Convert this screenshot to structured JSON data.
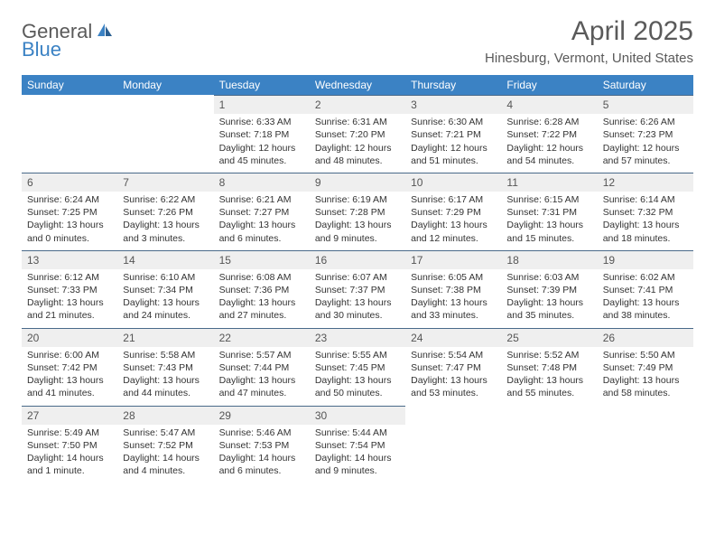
{
  "logo": {
    "part1": "General",
    "part2": "Blue"
  },
  "title": "April 2025",
  "location": "Hinesburg, Vermont, United States",
  "colors": {
    "header_blue": "#3b82c4",
    "daynum_bg": "#efefef",
    "rule": "#4a6a8a",
    "text_grey": "#5a5a5a",
    "body_text": "#333333"
  },
  "daysOfWeek": [
    "Sunday",
    "Monday",
    "Tuesday",
    "Wednesday",
    "Thursday",
    "Friday",
    "Saturday"
  ],
  "weeks": [
    [
      {
        "empty": true
      },
      {
        "empty": true
      },
      {
        "num": "1",
        "sunrise": "6:33 AM",
        "sunset": "7:18 PM",
        "daylight": "12 hours and 45 minutes."
      },
      {
        "num": "2",
        "sunrise": "6:31 AM",
        "sunset": "7:20 PM",
        "daylight": "12 hours and 48 minutes."
      },
      {
        "num": "3",
        "sunrise": "6:30 AM",
        "sunset": "7:21 PM",
        "daylight": "12 hours and 51 minutes."
      },
      {
        "num": "4",
        "sunrise": "6:28 AM",
        "sunset": "7:22 PM",
        "daylight": "12 hours and 54 minutes."
      },
      {
        "num": "5",
        "sunrise": "6:26 AM",
        "sunset": "7:23 PM",
        "daylight": "12 hours and 57 minutes."
      }
    ],
    [
      {
        "num": "6",
        "sunrise": "6:24 AM",
        "sunset": "7:25 PM",
        "daylight": "13 hours and 0 minutes."
      },
      {
        "num": "7",
        "sunrise": "6:22 AM",
        "sunset": "7:26 PM",
        "daylight": "13 hours and 3 minutes."
      },
      {
        "num": "8",
        "sunrise": "6:21 AM",
        "sunset": "7:27 PM",
        "daylight": "13 hours and 6 minutes."
      },
      {
        "num": "9",
        "sunrise": "6:19 AM",
        "sunset": "7:28 PM",
        "daylight": "13 hours and 9 minutes."
      },
      {
        "num": "10",
        "sunrise": "6:17 AM",
        "sunset": "7:29 PM",
        "daylight": "13 hours and 12 minutes."
      },
      {
        "num": "11",
        "sunrise": "6:15 AM",
        "sunset": "7:31 PM",
        "daylight": "13 hours and 15 minutes."
      },
      {
        "num": "12",
        "sunrise": "6:14 AM",
        "sunset": "7:32 PM",
        "daylight": "13 hours and 18 minutes."
      }
    ],
    [
      {
        "num": "13",
        "sunrise": "6:12 AM",
        "sunset": "7:33 PM",
        "daylight": "13 hours and 21 minutes."
      },
      {
        "num": "14",
        "sunrise": "6:10 AM",
        "sunset": "7:34 PM",
        "daylight": "13 hours and 24 minutes."
      },
      {
        "num": "15",
        "sunrise": "6:08 AM",
        "sunset": "7:36 PM",
        "daylight": "13 hours and 27 minutes."
      },
      {
        "num": "16",
        "sunrise": "6:07 AM",
        "sunset": "7:37 PM",
        "daylight": "13 hours and 30 minutes."
      },
      {
        "num": "17",
        "sunrise": "6:05 AM",
        "sunset": "7:38 PM",
        "daylight": "13 hours and 33 minutes."
      },
      {
        "num": "18",
        "sunrise": "6:03 AM",
        "sunset": "7:39 PM",
        "daylight": "13 hours and 35 minutes."
      },
      {
        "num": "19",
        "sunrise": "6:02 AM",
        "sunset": "7:41 PM",
        "daylight": "13 hours and 38 minutes."
      }
    ],
    [
      {
        "num": "20",
        "sunrise": "6:00 AM",
        "sunset": "7:42 PM",
        "daylight": "13 hours and 41 minutes."
      },
      {
        "num": "21",
        "sunrise": "5:58 AM",
        "sunset": "7:43 PM",
        "daylight": "13 hours and 44 minutes."
      },
      {
        "num": "22",
        "sunrise": "5:57 AM",
        "sunset": "7:44 PM",
        "daylight": "13 hours and 47 minutes."
      },
      {
        "num": "23",
        "sunrise": "5:55 AM",
        "sunset": "7:45 PM",
        "daylight": "13 hours and 50 minutes."
      },
      {
        "num": "24",
        "sunrise": "5:54 AM",
        "sunset": "7:47 PM",
        "daylight": "13 hours and 53 minutes."
      },
      {
        "num": "25",
        "sunrise": "5:52 AM",
        "sunset": "7:48 PM",
        "daylight": "13 hours and 55 minutes."
      },
      {
        "num": "26",
        "sunrise": "5:50 AM",
        "sunset": "7:49 PM",
        "daylight": "13 hours and 58 minutes."
      }
    ],
    [
      {
        "num": "27",
        "sunrise": "5:49 AM",
        "sunset": "7:50 PM",
        "daylight": "14 hours and 1 minute."
      },
      {
        "num": "28",
        "sunrise": "5:47 AM",
        "sunset": "7:52 PM",
        "daylight": "14 hours and 4 minutes."
      },
      {
        "num": "29",
        "sunrise": "5:46 AM",
        "sunset": "7:53 PM",
        "daylight": "14 hours and 6 minutes."
      },
      {
        "num": "30",
        "sunrise": "5:44 AM",
        "sunset": "7:54 PM",
        "daylight": "14 hours and 9 minutes."
      },
      {
        "empty": true
      },
      {
        "empty": true
      },
      {
        "empty": true
      }
    ]
  ],
  "labels": {
    "sunrise": "Sunrise:",
    "sunset": "Sunset:",
    "daylight": "Daylight:"
  }
}
